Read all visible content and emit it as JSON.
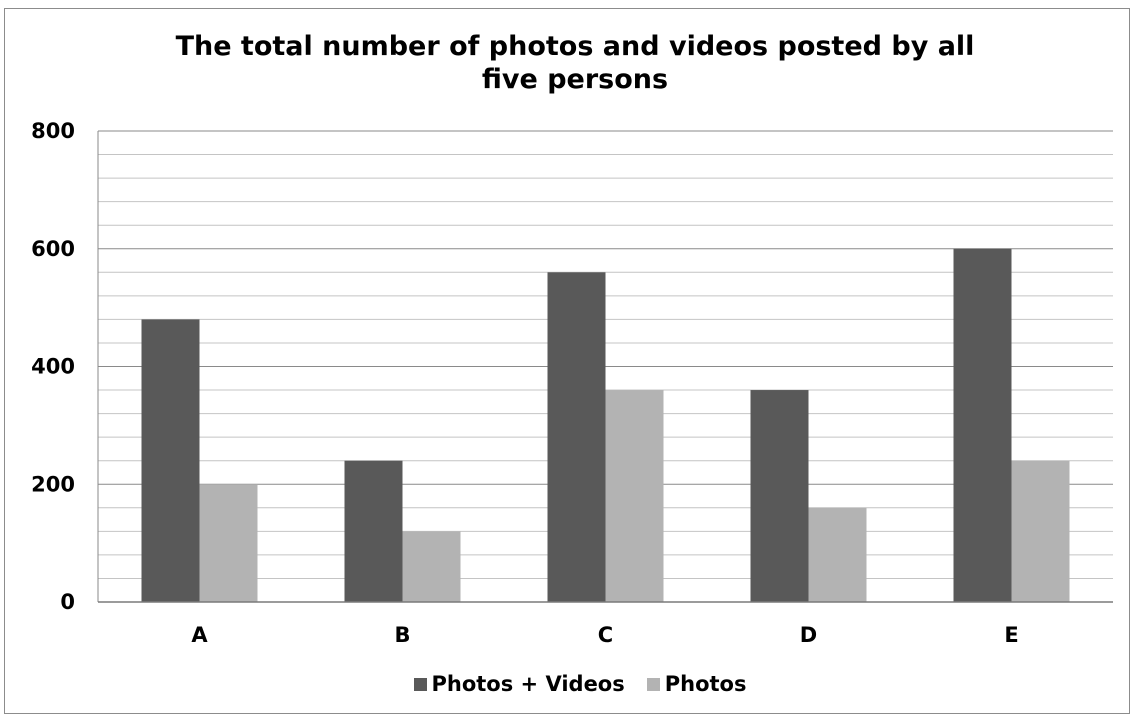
{
  "chart_data": {
    "type": "bar",
    "title_lines": [
      "The total number of photos and videos posted by all",
      "five persons"
    ],
    "categories": [
      "A",
      "B",
      "C",
      "D",
      "E"
    ],
    "series": [
      {
        "name": "Photos + Videos",
        "values": [
          480,
          240,
          560,
          360,
          600
        ],
        "color": "#595959"
      },
      {
        "name": "Photos",
        "values": [
          200,
          120,
          360,
          160,
          240
        ],
        "color": "#b3b3b3"
      }
    ],
    "xlabel": "",
    "ylabel": "",
    "ylim": [
      0,
      800
    ],
    "yticks": [
      0,
      200,
      400,
      600,
      800
    ],
    "minor_grid_step": 40,
    "grid": true,
    "legend_position": "bottom"
  }
}
